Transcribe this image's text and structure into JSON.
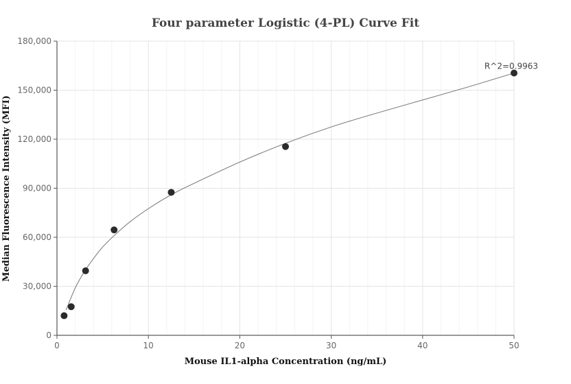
{
  "chart_data": {
    "type": "scatter",
    "title": "Four parameter Logistic (4-PL) Curve Fit",
    "xlabel": "Mouse IL1-alpha Concentration (ng/mL)",
    "ylabel": "Median Fluorescence Intensity (MFI)",
    "xlim": [
      0,
      50
    ],
    "ylim": [
      0,
      180000
    ],
    "x_ticks": [
      0,
      10,
      20,
      30,
      40,
      50
    ],
    "x_tick_labels": [
      "0",
      "10",
      "20",
      "30",
      "40",
      "50"
    ],
    "y_ticks": [
      0,
      30000,
      60000,
      90000,
      120000,
      150000,
      180000
    ],
    "y_tick_labels": [
      "0",
      "30,000",
      "60,000",
      "90,000",
      "120,000",
      "150,000",
      "180,000"
    ],
    "grid": true,
    "series": [
      {
        "points": [
          {
            "x": 0.78,
            "y": 12000
          },
          {
            "x": 1.56,
            "y": 17500
          },
          {
            "x": 3.13,
            "y": 39500
          },
          {
            "x": 6.25,
            "y": 64500
          },
          {
            "x": 12.5,
            "y": 87500
          },
          {
            "x": 25,
            "y": 115500
          },
          {
            "x": 50,
            "y": 160500
          }
        ]
      }
    ],
    "fit_curve": {
      "points": [
        {
          "x": 1.0,
          "y": 15500
        },
        {
          "x": 2.0,
          "y": 29000
        },
        {
          "x": 3.0,
          "y": 39000
        },
        {
          "x": 4.0,
          "y": 47000
        },
        {
          "x": 5.0,
          "y": 54000
        },
        {
          "x": 6.25,
          "y": 61000
        },
        {
          "x": 8.0,
          "y": 69500
        },
        {
          "x": 10.0,
          "y": 77500
        },
        {
          "x": 12.5,
          "y": 86000
        },
        {
          "x": 15.0,
          "y": 93000
        },
        {
          "x": 20.0,
          "y": 106000
        },
        {
          "x": 25.0,
          "y": 117500
        },
        {
          "x": 30.0,
          "y": 127500
        },
        {
          "x": 35.0,
          "y": 136000
        },
        {
          "x": 40.0,
          "y": 144000
        },
        {
          "x": 45.0,
          "y": 152000
        },
        {
          "x": 50.0,
          "y": 160500
        }
      ]
    },
    "annotation": "R^2=0.9963",
    "colors": {
      "point": "#2b2b2b",
      "curve": "#808080"
    }
  }
}
